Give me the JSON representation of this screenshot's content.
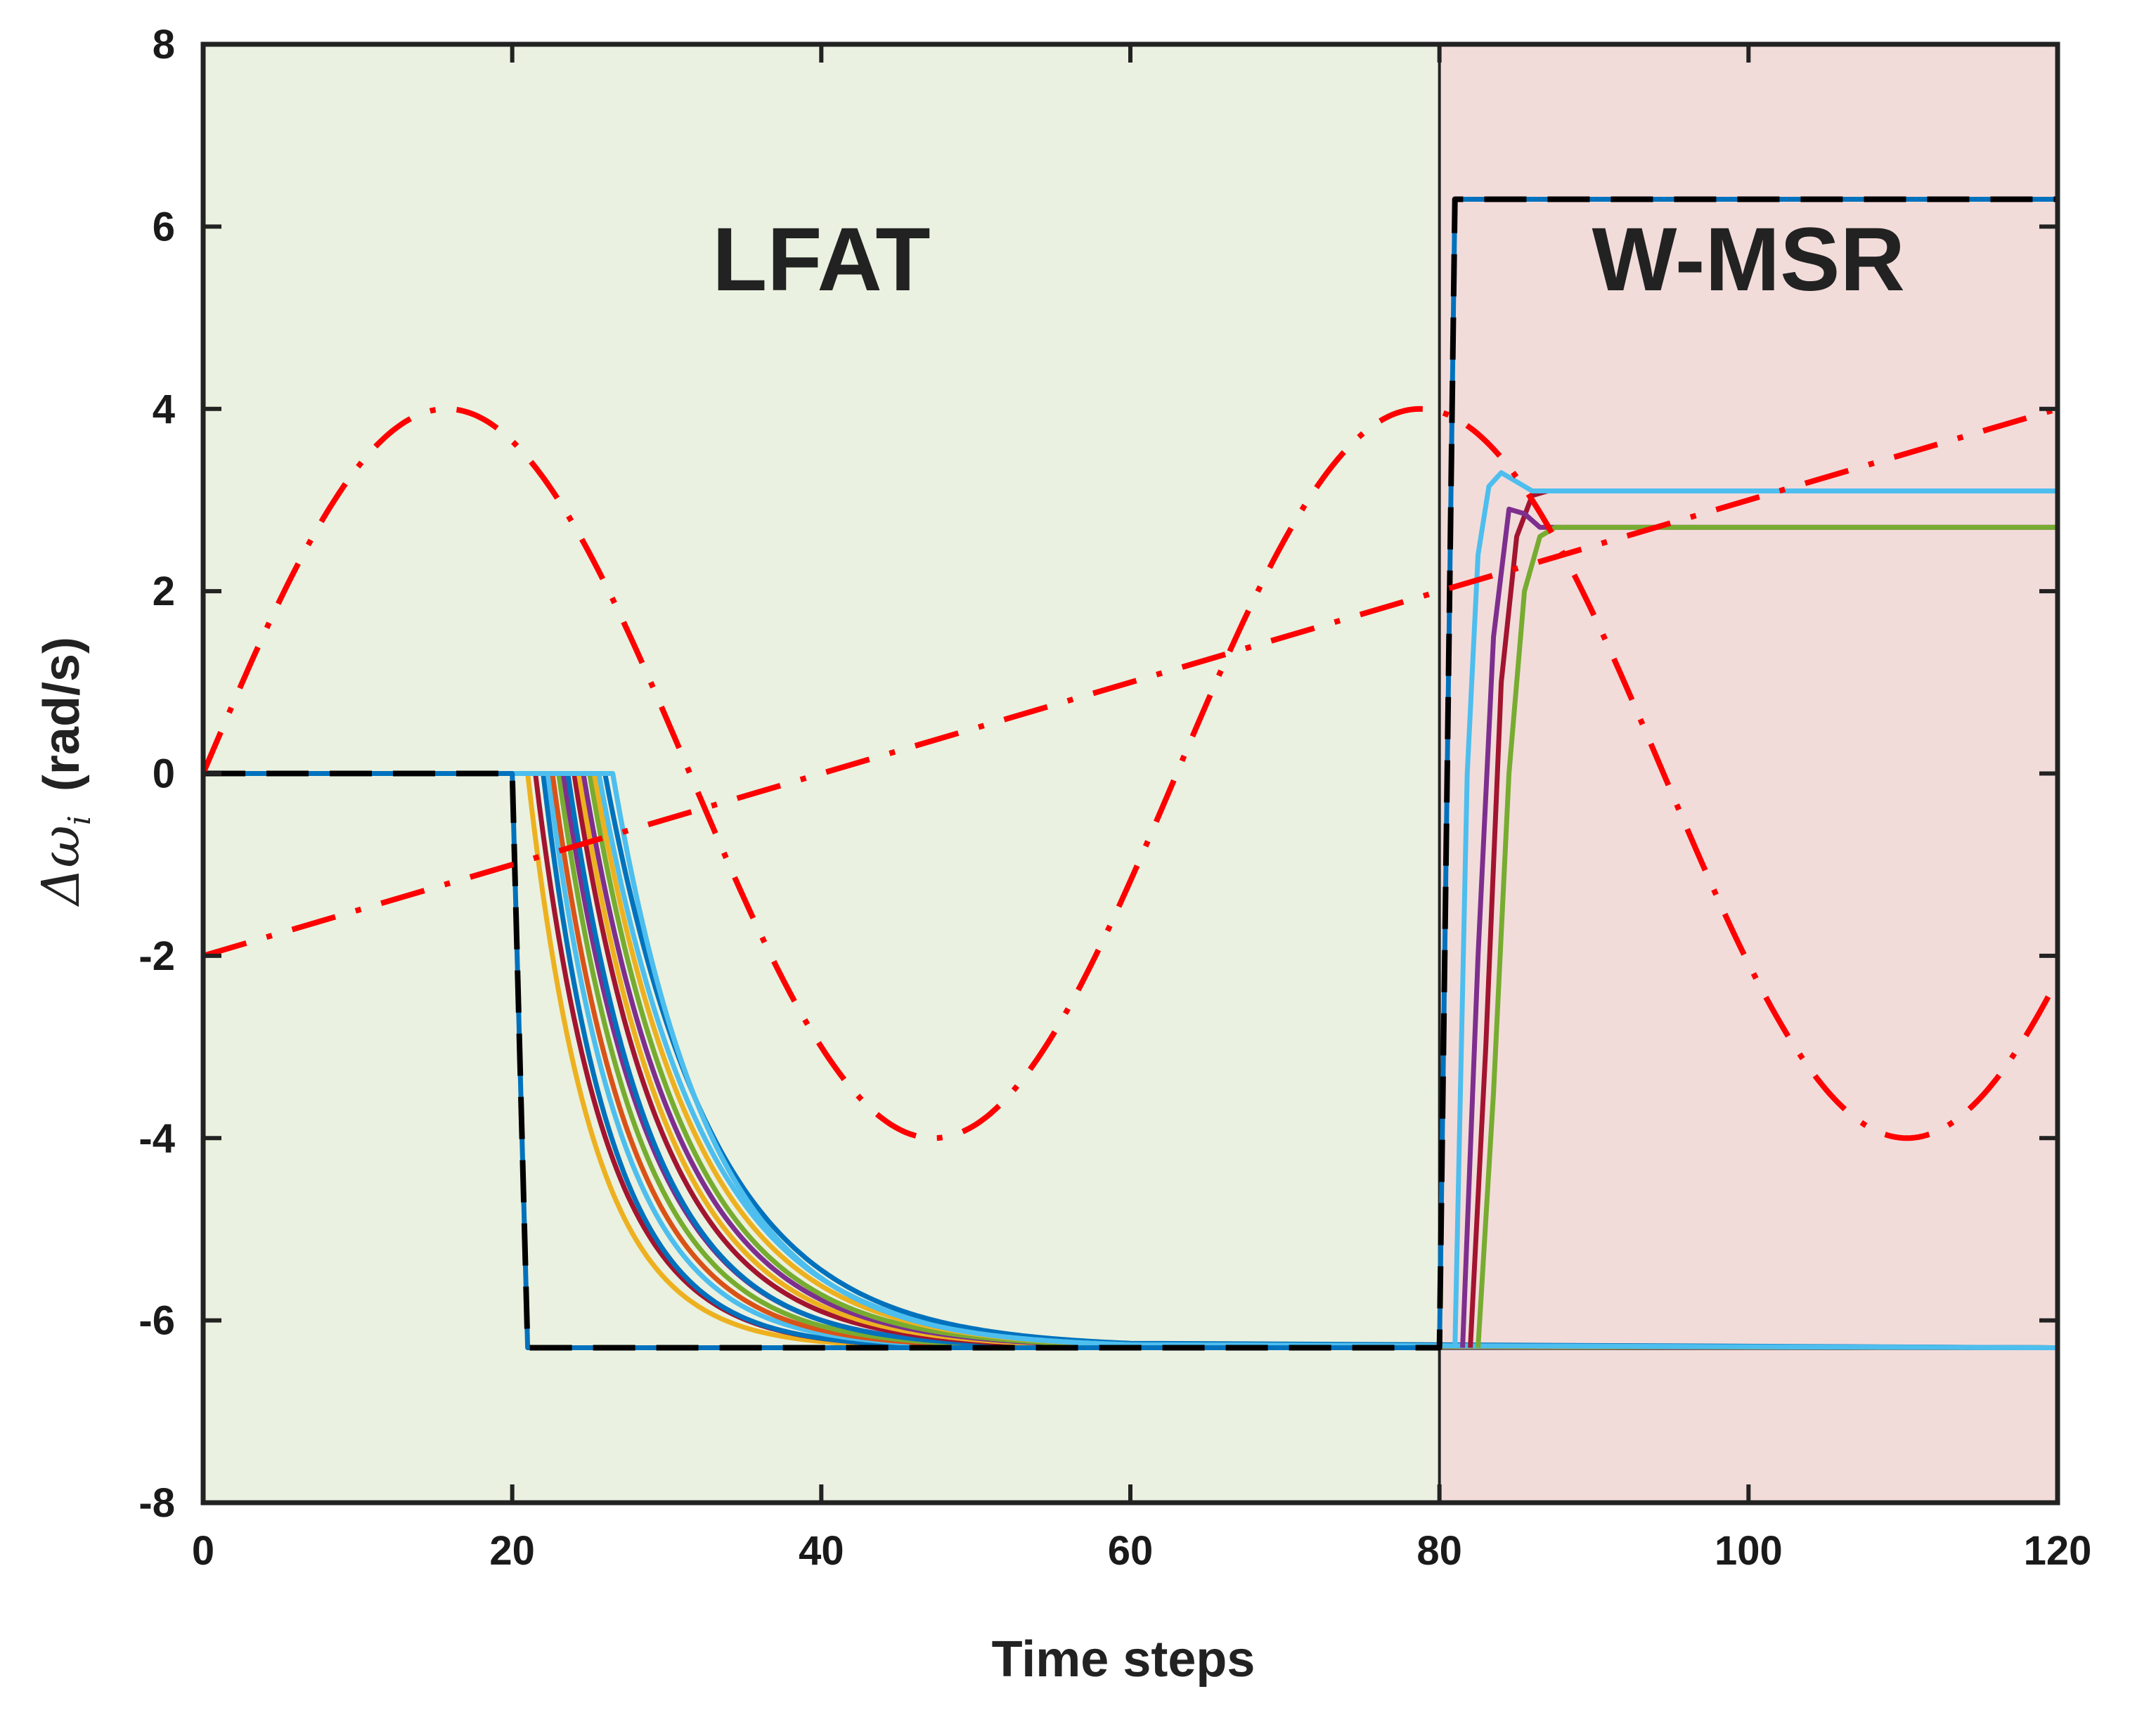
{
  "chart_data": {
    "type": "line",
    "xlabel": "Time steps",
    "ylabel": {
      "prefix": "Δ",
      "symbol": "ω",
      "subscript": "i",
      "unit": "(rad/s)"
    },
    "xlim": [
      0,
      120
    ],
    "ylim": [
      -8,
      8
    ],
    "xticks": [
      0,
      20,
      40,
      60,
      80,
      100,
      120
    ],
    "yticks": [
      8,
      6,
      4,
      2,
      0,
      -2,
      -4,
      -6,
      -8
    ],
    "regions": [
      {
        "label": "LFAT",
        "x_start": 0,
        "x_end": 80,
        "color": "#eaf1e0",
        "label_x": 40,
        "label_y": 5.3
      },
      {
        "label": "W-MSR",
        "x_start": 80,
        "x_end": 120,
        "color": "#f2dcda",
        "label_x": 100,
        "label_y": 5.3
      }
    ],
    "colors": {
      "red": "#ff0000",
      "black": "#000000",
      "blue": "#0072bd",
      "light_blue": "#4dbeee",
      "maroon": "#a2142f",
      "purple": "#7e2f8e",
      "green": "#77ac30",
      "orange": "#d95319",
      "yellow": "#edb120"
    },
    "series": [
      {
        "name": "sine-reference",
        "kind": "sine",
        "amplitude": 4,
        "period": 63,
        "x_range": [
          0,
          120
        ],
        "color": "#ff0000",
        "style": "dashdot"
      },
      {
        "name": "ramp-reference",
        "kind": "line",
        "x": [
          0,
          120
        ],
        "y": [
          -2,
          4
        ],
        "color": "#ff0000",
        "style": "dashdot"
      },
      {
        "name": "attack-reference-blue",
        "x": [
          0,
          20,
          21,
          80,
          81,
          120
        ],
        "y": [
          0,
          0,
          -6.3,
          -6.3,
          6.3,
          6.3
        ],
        "color": "#0072bd",
        "style": "solid"
      },
      {
        "name": "attack-reference-black",
        "x": [
          0,
          20,
          21,
          80,
          81,
          120
        ],
        "y": [
          0,
          0,
          -6.3,
          -6.3,
          6.3,
          6.3
        ],
        "color": "#000000",
        "style": "dashed"
      },
      {
        "name": "agent-decay-1",
        "kind": "decay",
        "start": 21,
        "x_end": 60,
        "tau": 4.2,
        "color": "#edb120"
      },
      {
        "name": "agent-decay-2",
        "kind": "decay",
        "start": 21.5,
        "x_end": 60,
        "tau": 4.5,
        "color": "#a2142f"
      },
      {
        "name": "agent-decay-3",
        "kind": "decay",
        "start": 22,
        "x_end": 60,
        "tau": 4.4,
        "color": "#0072bd"
      },
      {
        "name": "agent-decay-4",
        "kind": "decay",
        "start": 22.3,
        "x_end": 60,
        "tau": 4.8,
        "color": "#4dbeee"
      },
      {
        "name": "agent-decay-5",
        "kind": "decay",
        "start": 22.6,
        "x_end": 60,
        "tau": 5.0,
        "color": "#d95319"
      },
      {
        "name": "agent-decay-6",
        "kind": "decay",
        "start": 23,
        "x_end": 60,
        "tau": 5.2,
        "color": "#77ac30"
      },
      {
        "name": "agent-decay-7",
        "kind": "decay",
        "start": 23.3,
        "x_end": 60,
        "tau": 5.5,
        "color": "#7e2f8e"
      },
      {
        "name": "agent-decay-8",
        "kind": "decay",
        "start": 23.6,
        "x_end": 60,
        "tau": 5.4,
        "color": "#0072bd"
      },
      {
        "name": "agent-decay-9",
        "kind": "decay",
        "start": 24,
        "x_end": 60,
        "tau": 5.8,
        "color": "#a2142f"
      },
      {
        "name": "agent-decay-10",
        "kind": "decay",
        "start": 24.3,
        "x_end": 60,
        "tau": 6.0,
        "color": "#edb120"
      },
      {
        "name": "agent-decay-11",
        "kind": "decay",
        "start": 24.6,
        "x_end": 60,
        "tau": 6.2,
        "color": "#7e2f8e"
      },
      {
        "name": "agent-decay-12",
        "kind": "decay",
        "start": 25,
        "x_end": 60,
        "tau": 6.3,
        "color": "#77ac30"
      },
      {
        "name": "agent-decay-13",
        "kind": "decay",
        "start": 25.3,
        "x_end": 60,
        "tau": 6.6,
        "color": "#edb120"
      },
      {
        "name": "agent-decay-14",
        "kind": "decay",
        "start": 25.6,
        "x_end": 60,
        "tau": 6.8,
        "color": "#4dbeee"
      },
      {
        "name": "agent-decay-15",
        "kind": "decay",
        "start": 26,
        "x_end": 60,
        "tau": 7.0,
        "color": "#0072bd"
      },
      {
        "name": "agent-decay-16",
        "kind": "decay",
        "start": 26.5,
        "x_end": 60,
        "tau": 6.4,
        "color": "#4dbeee"
      },
      {
        "name": "agent-flat-light-blue",
        "x": [
          0,
          80,
          120
        ],
        "y": [
          0,
          -6.3,
          -6.3
        ],
        "kind": "points",
        "color": "#4dbeee"
      },
      {
        "name": "recovery-maroon",
        "x": [
          82,
          83,
          84,
          85,
          86,
          87,
          120
        ],
        "y": [
          -6.3,
          -3.0,
          1.0,
          2.6,
          3.05,
          3.1,
          3.1
        ],
        "color": "#a2142f"
      },
      {
        "name": "recovery-purple",
        "x": [
          81.5,
          82.5,
          83.5,
          84.5,
          85.5,
          86.5,
          87.5,
          120
        ],
        "y": [
          -6.3,
          -2.0,
          1.5,
          2.9,
          2.85,
          2.7,
          2.7,
          2.7
        ],
        "color": "#7e2f8e"
      },
      {
        "name": "recovery-green",
        "x": [
          82.5,
          83.5,
          84.5,
          85.5,
          86.5,
          87.5,
          120
        ],
        "y": [
          -6.3,
          -3.5,
          0.0,
          2.0,
          2.6,
          2.7,
          2.7
        ],
        "color": "#77ac30"
      },
      {
        "name": "recovery-light-blue",
        "x": [
          81,
          81.8,
          82.5,
          83.2,
          84,
          85,
          86,
          120
        ],
        "y": [
          -6.3,
          0.0,
          2.4,
          3.15,
          3.3,
          3.2,
          3.1,
          3.1
        ],
        "color": "#4dbeee"
      }
    ]
  }
}
